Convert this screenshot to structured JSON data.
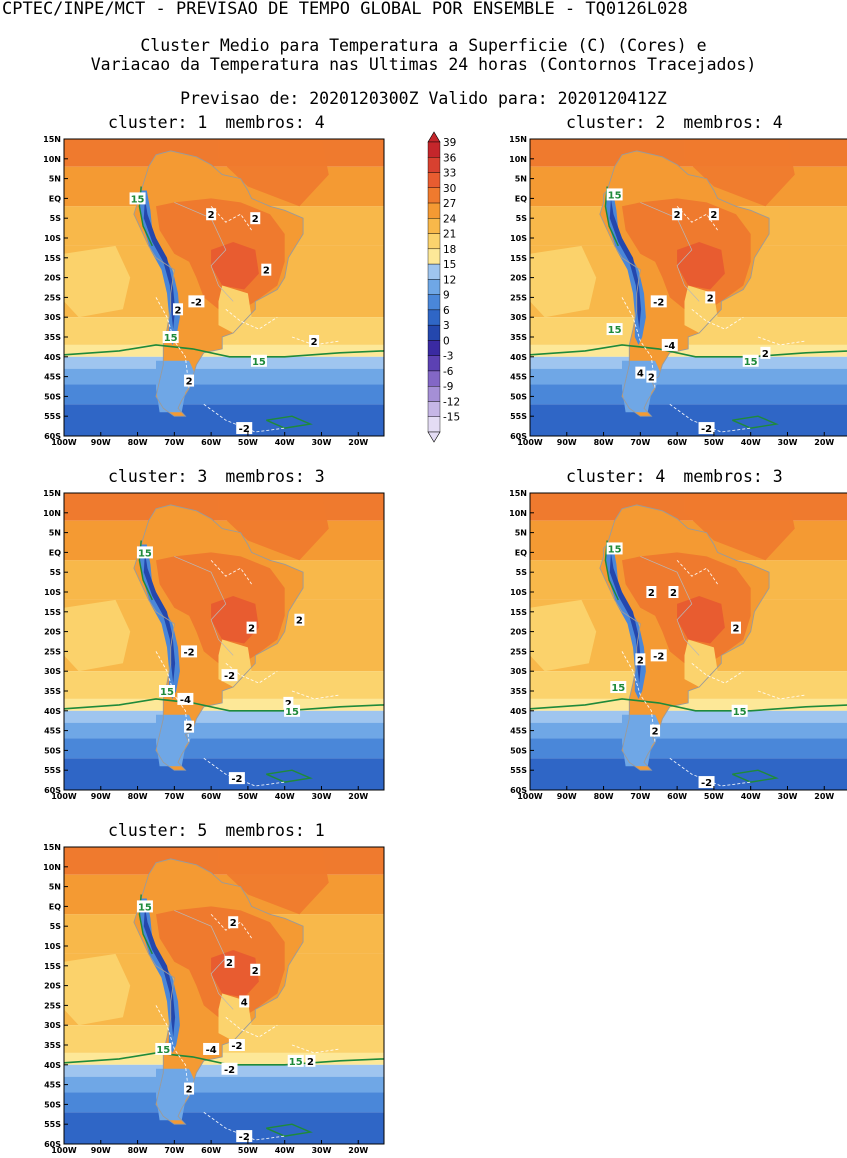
{
  "header": {
    "line1": "CPTEC/INPE/MCT - PREVISAO DE TEMPO GLOBAL POR ENSEMBLE - TQ0126L028",
    "line2": "Cluster Medio para Temperatura a Superficie (C) (Cores) e",
    "line3": "Variacao da Temperatura nas Ultimas 24 horas (Contornos Tracejados)",
    "line4": "Previsao de: 2020120300Z   Valido para: 2020120412Z"
  },
  "axes": {
    "lat_labels": [
      "15N",
      "10N",
      "5N",
      "EQ",
      "5S",
      "10S",
      "15S",
      "20S",
      "25S",
      "30S",
      "35S",
      "40S",
      "45S",
      "50S",
      "55S",
      "60S"
    ],
    "lon_labels": [
      "100W",
      "90W",
      "80W",
      "70W",
      "60W",
      "50W",
      "40W",
      "30W",
      "20W"
    ]
  },
  "colorbar": {
    "labels": [
      "39",
      "36",
      "33",
      "30",
      "27",
      "24",
      "21",
      "18",
      "15",
      "12",
      "9",
      "6",
      "3",
      "0",
      "-3",
      "-6",
      "-9",
      "-12",
      "-15"
    ],
    "colors": [
      "#c4262b",
      "#d84130",
      "#e85c30",
      "#ef7a2e",
      "#f49a33",
      "#f8b84a",
      "#fbd36d",
      "#fde898",
      "#9fc5ef",
      "#6fa7e6",
      "#4a87d9",
      "#2f66c6",
      "#2447ad",
      "#3a2aa2",
      "#5c41b3",
      "#8367c6",
      "#a58fd6",
      "#c6b6e6",
      "#e4dcf4"
    ]
  },
  "panels": [
    {
      "cluster_label": "cluster:",
      "cluster": "1",
      "members_label": "membros:",
      "members": "4",
      "labels": [
        {
          "t": "15",
          "lon": -80,
          "lat": 0,
          "g": true
        },
        {
          "t": "2",
          "lon": -60,
          "lat": -4,
          "g": false
        },
        {
          "t": "2",
          "lon": -48,
          "lat": -5,
          "g": false
        },
        {
          "t": "2",
          "lon": -45,
          "lat": -18,
          "g": false
        },
        {
          "t": "-2",
          "lon": -64,
          "lat": -26,
          "g": false
        },
        {
          "t": "2",
          "lon": -69,
          "lat": -28,
          "g": false
        },
        {
          "t": "15",
          "lon": -71,
          "lat": -35,
          "g": true
        },
        {
          "t": "15",
          "lon": -47,
          "lat": -41,
          "g": true
        },
        {
          "t": "2",
          "lon": -32,
          "lat": -36,
          "g": false
        },
        {
          "t": "2",
          "lon": -66,
          "lat": -46,
          "g": false
        },
        {
          "t": "-2",
          "lon": -51,
          "lat": -58,
          "g": false
        }
      ]
    },
    {
      "cluster_label": "cluster:",
      "cluster": "2",
      "members_label": "membros:",
      "members": "4",
      "labels": [
        {
          "t": "15",
          "lon": -77,
          "lat": 1,
          "g": true
        },
        {
          "t": "2",
          "lon": -60,
          "lat": -4,
          "g": false
        },
        {
          "t": "2",
          "lon": -50,
          "lat": -4,
          "g": false
        },
        {
          "t": "-2",
          "lon": -65,
          "lat": -26,
          "g": false
        },
        {
          "t": "2",
          "lon": -51,
          "lat": -25,
          "g": false
        },
        {
          "t": "15",
          "lon": -77,
          "lat": -33,
          "g": true
        },
        {
          "t": "-4",
          "lon": -62,
          "lat": -37,
          "g": false
        },
        {
          "t": "4",
          "lon": -70,
          "lat": -44,
          "g": false
        },
        {
          "t": "2",
          "lon": -67,
          "lat": -45,
          "g": false
        },
        {
          "t": "15",
          "lon": -40,
          "lat": -41,
          "g": true
        },
        {
          "t": "2",
          "lon": -36,
          "lat": -39,
          "g": false
        },
        {
          "t": "-2",
          "lon": -52,
          "lat": -58,
          "g": false
        }
      ]
    },
    {
      "cluster_label": "cluster:",
      "cluster": "3",
      "members_label": "membros:",
      "members": "3",
      "labels": [
        {
          "t": "15",
          "lon": -78,
          "lat": 0,
          "g": true
        },
        {
          "t": "2",
          "lon": -49,
          "lat": -19,
          "g": false
        },
        {
          "t": "2",
          "lon": -36,
          "lat": -17,
          "g": false
        },
        {
          "t": "-2",
          "lon": -66,
          "lat": -25,
          "g": false
        },
        {
          "t": "-2",
          "lon": -55,
          "lat": -31,
          "g": false
        },
        {
          "t": "15",
          "lon": -72,
          "lat": -35,
          "g": true
        },
        {
          "t": "-4",
          "lon": -67,
          "lat": -37,
          "g": false
        },
        {
          "t": "2",
          "lon": -39,
          "lat": -38,
          "g": false
        },
        {
          "t": "15",
          "lon": -38,
          "lat": -40,
          "g": true
        },
        {
          "t": "2",
          "lon": -66,
          "lat": -44,
          "g": false
        },
        {
          "t": "-2",
          "lon": -53,
          "lat": -57,
          "g": false
        }
      ]
    },
    {
      "cluster_label": "cluster:",
      "cluster": "4",
      "members_label": "membros:",
      "members": "3",
      "labels": [
        {
          "t": "15",
          "lon": -77,
          "lat": 1,
          "g": true
        },
        {
          "t": "2",
          "lon": -67,
          "lat": -10,
          "g": false
        },
        {
          "t": "2",
          "lon": -61,
          "lat": -10,
          "g": false
        },
        {
          "t": "2",
          "lon": -44,
          "lat": -19,
          "g": false
        },
        {
          "t": "-2",
          "lon": -65,
          "lat": -26,
          "g": false
        },
        {
          "t": "2",
          "lon": -70,
          "lat": -27,
          "g": false
        },
        {
          "t": "15",
          "lon": -76,
          "lat": -34,
          "g": true
        },
        {
          "t": "15",
          "lon": -43,
          "lat": -40,
          "g": true
        },
        {
          "t": "2",
          "lon": -66,
          "lat": -45,
          "g": false
        },
        {
          "t": "-2",
          "lon": -52,
          "lat": -58,
          "g": false
        }
      ]
    },
    {
      "cluster_label": "cluster:",
      "cluster": "5",
      "members_label": "membros:",
      "members": "1",
      "labels": [
        {
          "t": "15",
          "lon": -78,
          "lat": 0,
          "g": true
        },
        {
          "t": "2",
          "lon": -54,
          "lat": -4,
          "g": false
        },
        {
          "t": "2",
          "lon": -55,
          "lat": -14,
          "g": false
        },
        {
          "t": "2",
          "lon": -48,
          "lat": -16,
          "g": false
        },
        {
          "t": "4",
          "lon": -51,
          "lat": -24,
          "g": false
        },
        {
          "t": "-2",
          "lon": -53,
          "lat": -35,
          "g": false
        },
        {
          "t": "15",
          "lon": -73,
          "lat": -36,
          "g": true
        },
        {
          "t": "-4",
          "lon": -60,
          "lat": -36,
          "g": false
        },
        {
          "t": "-2",
          "lon": -55,
          "lat": -41,
          "g": false
        },
        {
          "t": "15",
          "lon": -37,
          "lat": -39,
          "g": true
        },
        {
          "t": "2",
          "lon": -33,
          "lat": -39,
          "g": false
        },
        {
          "t": "2",
          "lon": -66,
          "lat": -46,
          "g": false
        },
        {
          "t": "-2",
          "lon": -51,
          "lat": -58,
          "g": false
        }
      ]
    }
  ]
}
